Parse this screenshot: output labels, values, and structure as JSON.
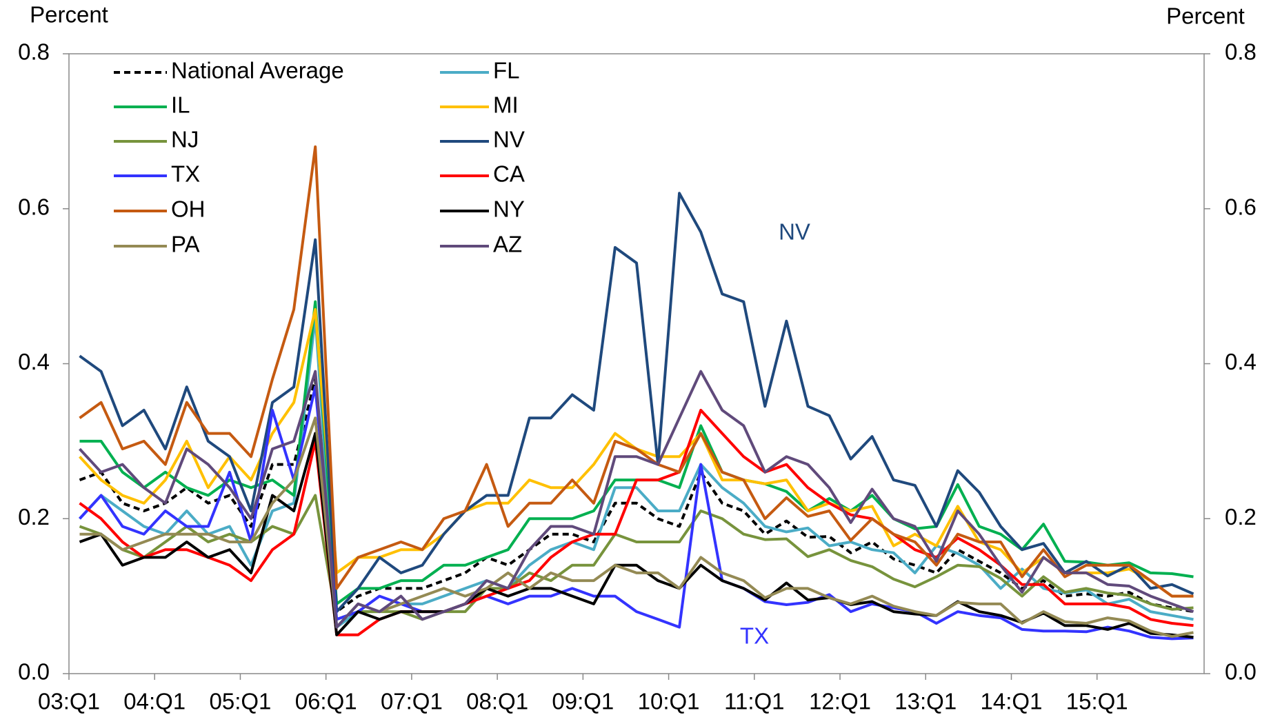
{
  "chart_data": {
    "type": "line",
    "y_label": "Percent",
    "y2_label": "Percent",
    "categories": [
      "03:Q1",
      null,
      null,
      null,
      "04:Q1",
      null,
      null,
      null,
      "05:Q1",
      null,
      null,
      null,
      "06:Q1",
      null,
      null,
      null,
      "07:Q1",
      null,
      null,
      null,
      "08:Q1",
      null,
      null,
      null,
      "09:Q1",
      null,
      null,
      null,
      "10:Q1",
      null,
      null,
      null,
      "11:Q1",
      null,
      null,
      null,
      "12:Q1",
      null,
      null,
      null,
      "13:Q1",
      null,
      null,
      null,
      "14:Q1",
      null,
      null,
      null,
      "15:Q1",
      null,
      null,
      null,
      null
    ],
    "ylim": [
      0,
      0.8
    ],
    "yticks": [
      {
        "value": 0,
        "label": "0.0"
      },
      0.2,
      0.4,
      0.6,
      0.8
    ],
    "y2lim": [
      0,
      0.8
    ],
    "y2ticks": [
      {
        "value": 0,
        "label": "0.0"
      },
      0.2,
      0.4,
      0.6,
      0.8
    ],
    "grid": false,
    "legend": "upper left",
    "annotations": [
      "NV",
      "TX"
    ],
    "series": [
      {
        "name": "National Average",
        "color": "#000000",
        "style": "dashed",
        "values": [
          0.25,
          0.26,
          0.22,
          0.21,
          0.22,
          0.24,
          0.22,
          0.23,
          0.19,
          0.27,
          0.27,
          0.38,
          0.08,
          0.1,
          0.11,
          0.11,
          0.11,
          0.12,
          0.13,
          0.15,
          0.14,
          0.16,
          0.18,
          0.18,
          0.17,
          0.22,
          0.22,
          0.2,
          0.19,
          0.26,
          0.22,
          0.21,
          0.18,
          0.197,
          0.176,
          0.177,
          0.156,
          0.17,
          0.148,
          0.14,
          0.13,
          0.16,
          0.145,
          0.13,
          0.11,
          0.12,
          0.1,
          0.103,
          0.1,
          0.105,
          0.09,
          0.085,
          0.08
        ]
      },
      {
        "name": "FL",
        "color": "#4bacc6",
        "values": [
          0.2,
          0.23,
          0.21,
          0.19,
          0.18,
          0.21,
          0.18,
          0.19,
          0.14,
          0.21,
          0.22,
          0.46,
          0.06,
          0.08,
          0.08,
          0.09,
          0.09,
          0.1,
          0.11,
          0.12,
          0.11,
          0.14,
          0.16,
          0.17,
          0.16,
          0.24,
          0.24,
          0.21,
          0.21,
          0.27,
          0.24,
          0.22,
          0.19,
          0.183,
          0.188,
          0.165,
          0.17,
          0.16,
          0.156,
          0.13,
          0.165,
          0.155,
          0.14,
          0.11,
          0.135,
          0.11,
          0.104,
          0.108,
          0.09,
          0.096,
          0.08,
          0.075,
          0.07
        ]
      },
      {
        "name": "IL",
        "color": "#00b050",
        "values": [
          0.3,
          0.3,
          0.26,
          0.24,
          0.26,
          0.24,
          0.23,
          0.25,
          0.24,
          0.25,
          0.23,
          0.48,
          0.09,
          0.11,
          0.11,
          0.12,
          0.12,
          0.14,
          0.14,
          0.15,
          0.16,
          0.2,
          0.2,
          0.2,
          0.21,
          0.25,
          0.25,
          0.25,
          0.24,
          0.32,
          0.26,
          0.25,
          0.245,
          0.235,
          0.21,
          0.226,
          0.21,
          0.23,
          0.2,
          0.187,
          0.19,
          0.244,
          0.19,
          0.18,
          0.16,
          0.193,
          0.145,
          0.144,
          0.14,
          0.143,
          0.13,
          0.129,
          0.125
        ]
      },
      {
        "name": "MI",
        "color": "#ffc000",
        "values": [
          0.28,
          0.25,
          0.23,
          0.22,
          0.25,
          0.3,
          0.24,
          0.28,
          0.25,
          0.31,
          0.35,
          0.47,
          0.13,
          0.15,
          0.15,
          0.16,
          0.16,
          0.18,
          0.21,
          0.22,
          0.22,
          0.25,
          0.24,
          0.24,
          0.27,
          0.31,
          0.29,
          0.28,
          0.28,
          0.31,
          0.25,
          0.25,
          0.245,
          0.25,
          0.21,
          0.22,
          0.21,
          0.216,
          0.165,
          0.18,
          0.165,
          0.216,
          0.17,
          0.16,
          0.13,
          0.15,
          0.13,
          0.13,
          0.13,
          0.135,
          0.12,
          0.1,
          0.1
        ]
      },
      {
        "name": "NJ",
        "color": "#77933c",
        "values": [
          0.19,
          0.18,
          0.16,
          0.15,
          0.17,
          0.19,
          0.17,
          0.18,
          0.17,
          0.19,
          0.18,
          0.23,
          0.07,
          0.08,
          0.08,
          0.08,
          0.07,
          0.08,
          0.08,
          0.11,
          0.11,
          0.13,
          0.12,
          0.14,
          0.14,
          0.18,
          0.17,
          0.17,
          0.17,
          0.21,
          0.2,
          0.18,
          0.173,
          0.174,
          0.151,
          0.16,
          0.146,
          0.138,
          0.122,
          0.112,
          0.125,
          0.14,
          0.138,
          0.123,
          0.1,
          0.125,
          0.105,
          0.11,
          0.104,
          0.101,
          0.09,
          0.083,
          0.085
        ]
      },
      {
        "name": "NV",
        "color": "#1f497d",
        "values": [
          0.41,
          0.39,
          0.32,
          0.34,
          0.29,
          0.37,
          0.3,
          0.28,
          0.21,
          0.35,
          0.37,
          0.56,
          0.08,
          0.11,
          0.15,
          0.13,
          0.14,
          0.18,
          0.21,
          0.23,
          0.23,
          0.33,
          0.33,
          0.36,
          0.34,
          0.55,
          0.53,
          0.27,
          0.62,
          0.57,
          0.49,
          0.48,
          0.345,
          0.455,
          0.345,
          0.333,
          0.277,
          0.306,
          0.25,
          0.243,
          0.19,
          0.262,
          0.234,
          0.19,
          0.16,
          0.168,
          0.13,
          0.145,
          0.126,
          0.14,
          0.11,
          0.115,
          0.103
        ]
      },
      {
        "name": "TX",
        "color": "#3333ff",
        "values": [
          0.2,
          0.23,
          0.19,
          0.18,
          0.21,
          0.19,
          0.19,
          0.26,
          0.17,
          0.34,
          0.25,
          0.37,
          0.07,
          0.08,
          0.1,
          0.09,
          0.08,
          0.08,
          0.09,
          0.1,
          0.09,
          0.1,
          0.1,
          0.11,
          0.1,
          0.1,
          0.08,
          0.07,
          0.06,
          0.27,
          0.12,
          0.11,
          0.093,
          0.089,
          0.092,
          0.102,
          0.08,
          0.09,
          0.085,
          0.08,
          0.065,
          0.08,
          0.075,
          0.072,
          0.057,
          0.055,
          0.055,
          0.054,
          0.06,
          0.055,
          0.047,
          0.045,
          0.046
        ]
      },
      {
        "name": "CA",
        "color": "#ff0000",
        "values": [
          0.22,
          0.2,
          0.17,
          0.15,
          0.16,
          0.16,
          0.15,
          0.14,
          0.12,
          0.16,
          0.18,
          0.3,
          0.05,
          0.05,
          0.07,
          0.08,
          0.08,
          0.08,
          0.09,
          0.1,
          0.11,
          0.12,
          0.15,
          0.17,
          0.18,
          0.18,
          0.25,
          0.25,
          0.26,
          0.34,
          0.31,
          0.28,
          0.26,
          0.27,
          0.24,
          0.22,
          0.205,
          0.2,
          0.18,
          0.16,
          0.15,
          0.175,
          0.16,
          0.14,
          0.115,
          0.115,
          0.09,
          0.09,
          0.09,
          0.085,
          0.07,
          0.065,
          0.062
        ]
      },
      {
        "name": "OH",
        "color": "#c55a11",
        "values": [
          0.33,
          0.35,
          0.29,
          0.3,
          0.27,
          0.35,
          0.31,
          0.31,
          0.28,
          0.38,
          0.47,
          0.68,
          0.11,
          0.15,
          0.16,
          0.17,
          0.16,
          0.2,
          0.21,
          0.27,
          0.19,
          0.22,
          0.22,
          0.25,
          0.22,
          0.3,
          0.29,
          0.27,
          0.26,
          0.31,
          0.26,
          0.25,
          0.2,
          0.227,
          0.203,
          0.21,
          0.172,
          0.2,
          0.18,
          0.17,
          0.14,
          0.18,
          0.17,
          0.17,
          0.125,
          0.16,
          0.125,
          0.14,
          0.14,
          0.14,
          0.12,
          0.1,
          0.1
        ]
      },
      {
        "name": "NY",
        "color": "#000000",
        "values": [
          0.17,
          0.18,
          0.14,
          0.15,
          0.15,
          0.17,
          0.15,
          0.16,
          0.13,
          0.23,
          0.21,
          0.31,
          0.05,
          0.08,
          0.07,
          0.08,
          0.08,
          0.08,
          0.09,
          0.11,
          0.1,
          0.11,
          0.11,
          0.1,
          0.09,
          0.14,
          0.14,
          0.12,
          0.11,
          0.14,
          0.12,
          0.11,
          0.095,
          0.117,
          0.095,
          0.098,
          0.089,
          0.093,
          0.08,
          0.077,
          0.075,
          0.093,
          0.08,
          0.075,
          0.066,
          0.078,
          0.062,
          0.062,
          0.057,
          0.065,
          0.052,
          0.05,
          0.047
        ]
      },
      {
        "name": "PA",
        "color": "#948a54",
        "values": [
          0.18,
          0.18,
          0.16,
          0.17,
          0.18,
          0.18,
          0.18,
          0.17,
          0.17,
          0.22,
          0.25,
          0.33,
          0.06,
          0.09,
          0.08,
          0.09,
          0.1,
          0.11,
          0.1,
          0.11,
          0.13,
          0.11,
          0.13,
          0.12,
          0.12,
          0.14,
          0.13,
          0.13,
          0.11,
          0.15,
          0.13,
          0.12,
          0.098,
          0.11,
          0.11,
          0.098,
          0.09,
          0.1,
          0.087,
          0.08,
          0.075,
          0.092,
          0.09,
          0.09,
          0.065,
          0.08,
          0.067,
          0.065,
          0.072,
          0.068,
          0.055,
          0.048,
          0.053
        ]
      },
      {
        "name": "AZ",
        "color": "#604a7b",
        "values": [
          0.29,
          0.26,
          0.27,
          0.24,
          0.22,
          0.29,
          0.27,
          0.24,
          0.2,
          0.29,
          0.3,
          0.39,
          0.06,
          0.09,
          0.08,
          0.1,
          0.07,
          0.08,
          0.09,
          0.12,
          0.11,
          0.16,
          0.19,
          0.19,
          0.18,
          0.28,
          0.28,
          0.27,
          0.33,
          0.39,
          0.34,
          0.32,
          0.26,
          0.28,
          0.27,
          0.24,
          0.195,
          0.238,
          0.2,
          0.19,
          0.145,
          0.21,
          0.18,
          0.14,
          0.105,
          0.15,
          0.13,
          0.13,
          0.115,
          0.113,
          0.1,
          0.09,
          0.08
        ]
      }
    ]
  }
}
